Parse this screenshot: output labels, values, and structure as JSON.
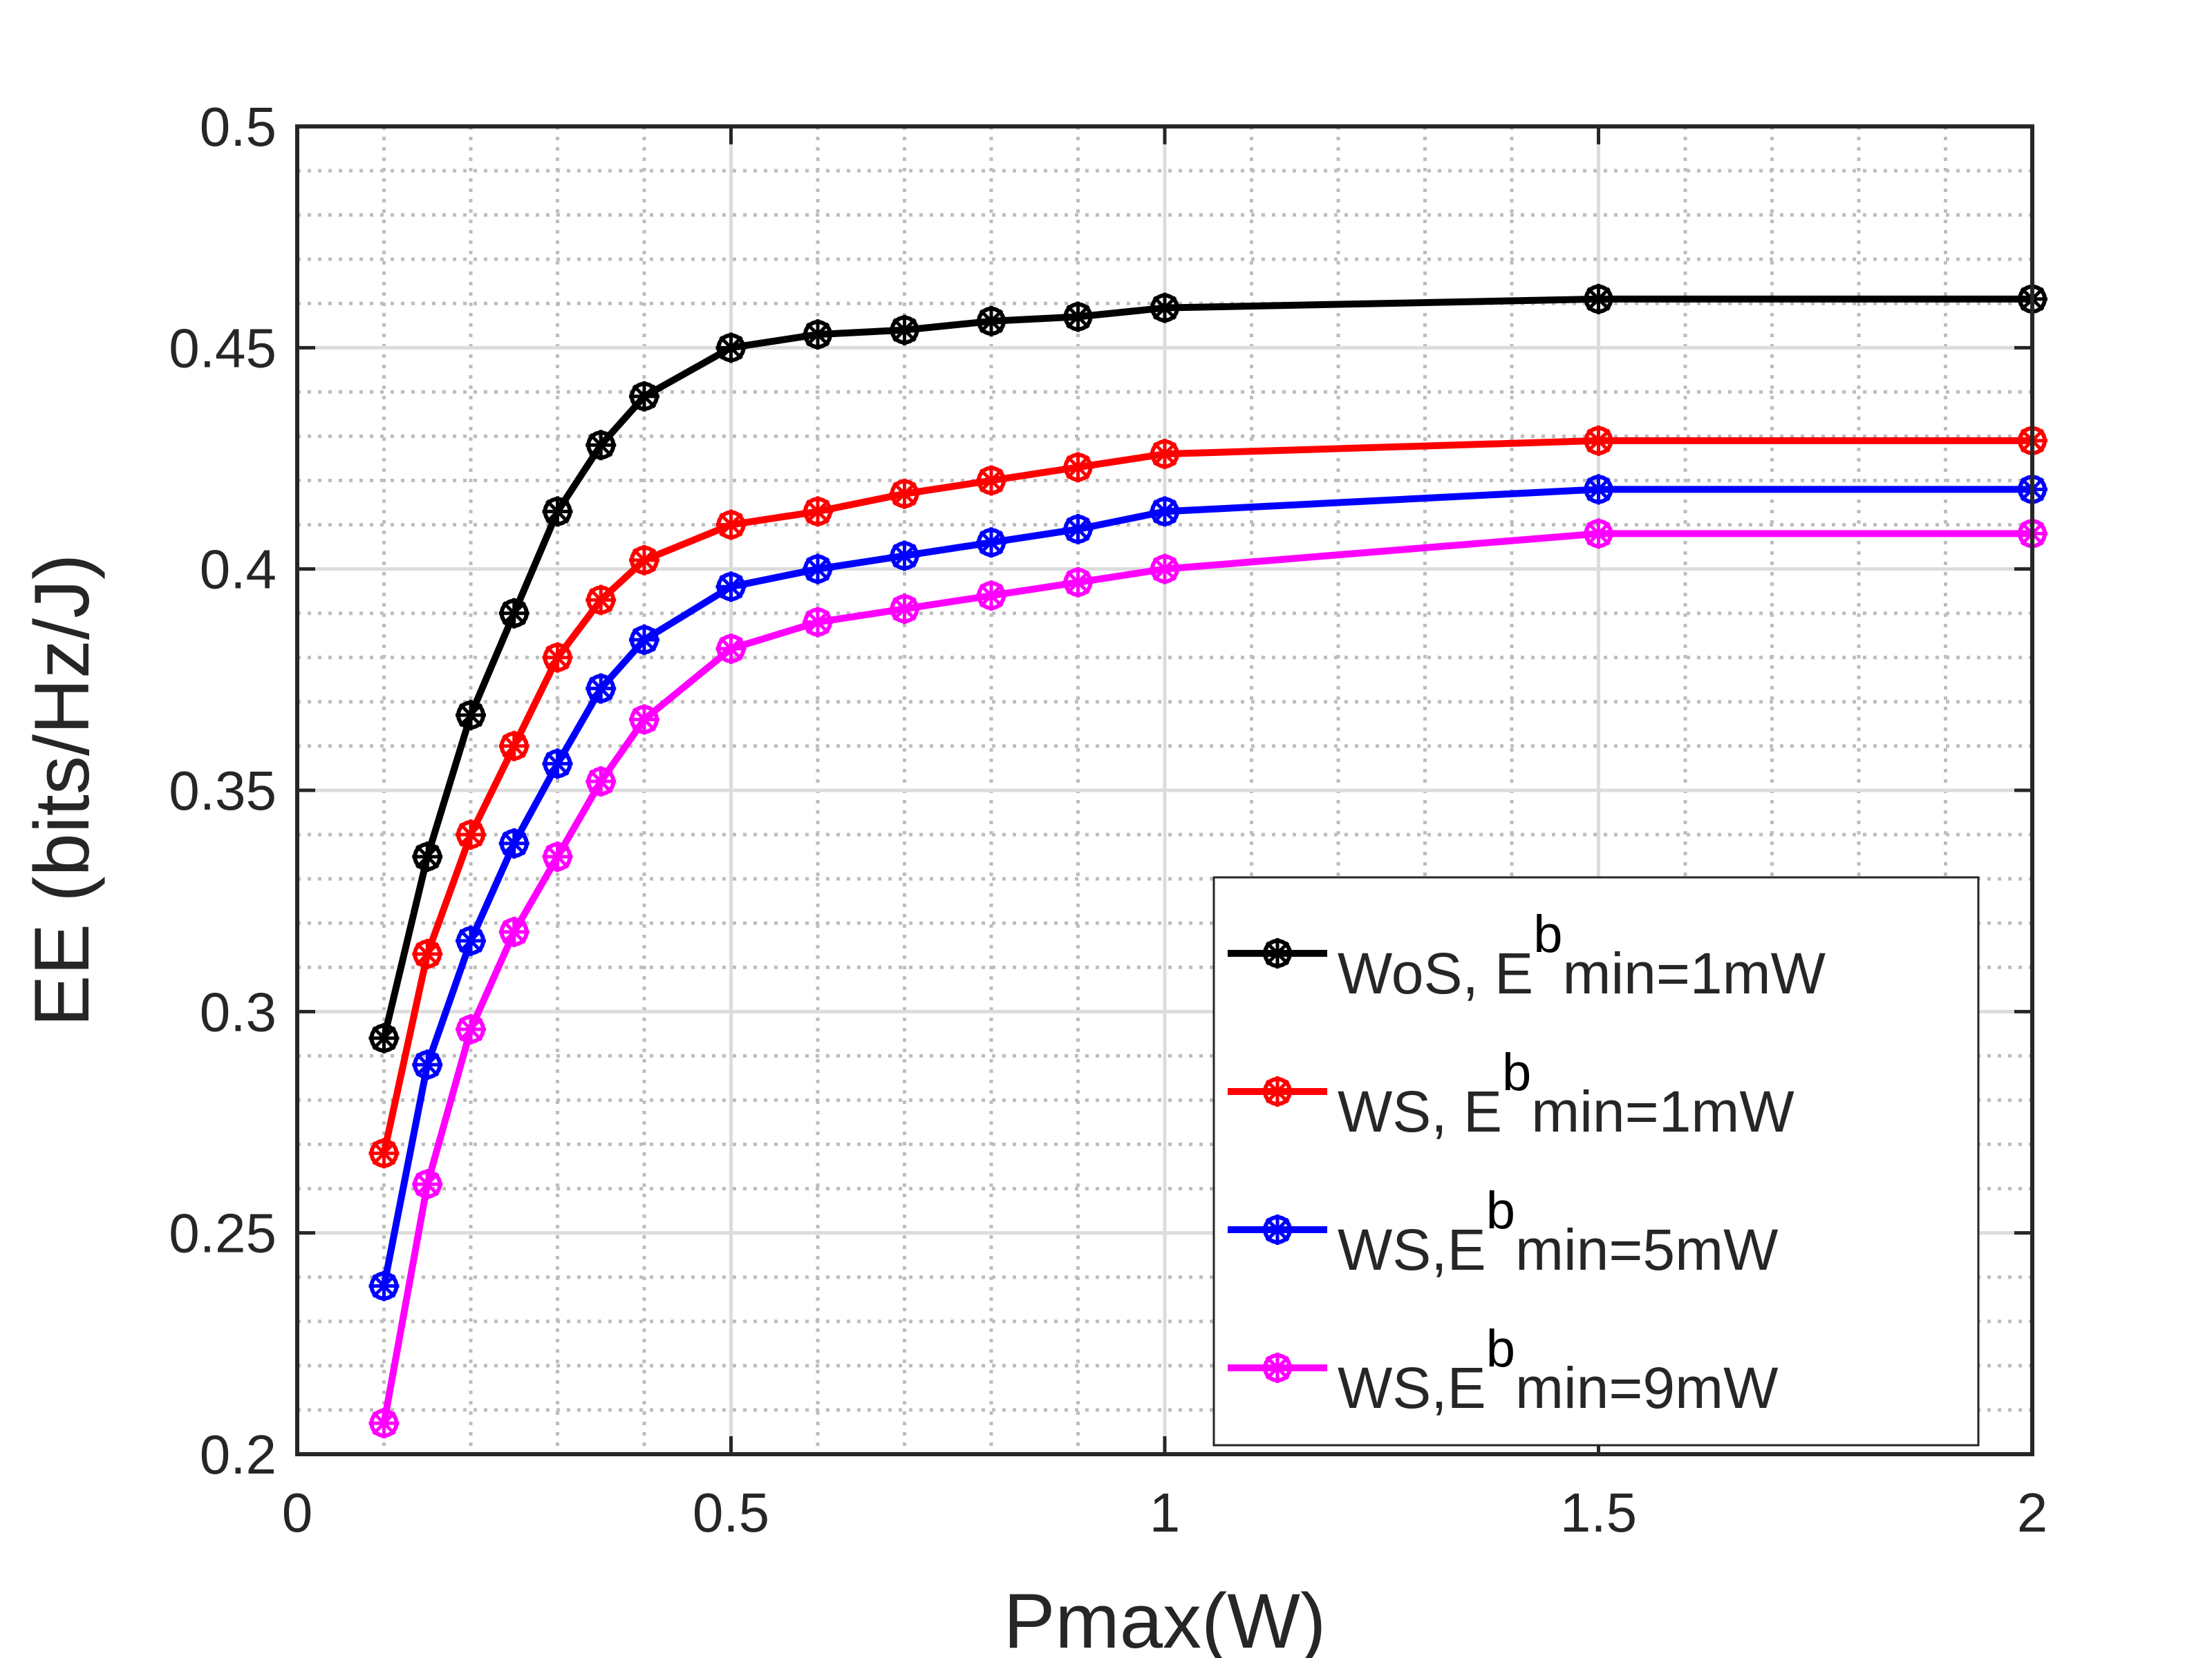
{
  "chart_data": {
    "type": "line",
    "title": "",
    "xlabel": "Pmax(W)",
    "ylabel": "EE (bits/Hz/J)",
    "xlim": [
      0,
      2
    ],
    "ylim": [
      0.2,
      0.5
    ],
    "xticks": [
      0,
      0.5,
      1,
      1.5,
      2
    ],
    "xtick_labels": [
      "0",
      "0.5",
      "1",
      "1.5",
      "2"
    ],
    "yticks": [
      0.2,
      0.25,
      0.3,
      0.35,
      0.4,
      0.45,
      0.5
    ],
    "ytick_labels": [
      "0.2",
      "0.25",
      "0.3",
      "0.35",
      "0.4",
      "0.45",
      "0.5"
    ],
    "grid": true,
    "legend_position": "bottom-right",
    "x": [
      0.1,
      0.15,
      0.2,
      0.25,
      0.3,
      0.35,
      0.4,
      0.5,
      0.6,
      0.7,
      0.8,
      0.9,
      1.0,
      1.5,
      2.0
    ],
    "series": [
      {
        "name": "WoS, E^b_min=1mW",
        "legend_parts": [
          "WoS, E",
          "b",
          "min=1mW"
        ],
        "color": "#000000",
        "values": [
          0.294,
          0.335,
          0.367,
          0.39,
          0.413,
          0.428,
          0.439,
          0.45,
          0.453,
          0.454,
          0.456,
          0.457,
          0.459,
          0.461,
          0.461
        ]
      },
      {
        "name": "WS, E^b_min=1mW",
        "legend_parts": [
          "WS, E",
          "b",
          "min=1mW"
        ],
        "color": "#ff0000",
        "values": [
          0.268,
          0.313,
          0.34,
          0.36,
          0.38,
          0.393,
          0.402,
          0.41,
          0.413,
          0.417,
          0.42,
          0.423,
          0.426,
          0.429,
          0.429
        ]
      },
      {
        "name": "WS,E^b_min=5mW",
        "legend_parts": [
          "WS,E",
          "b",
          "min=5mW"
        ],
        "color": "#0000ff",
        "values": [
          0.238,
          0.288,
          0.316,
          0.338,
          0.356,
          0.373,
          0.384,
          0.396,
          0.4,
          0.403,
          0.406,
          0.409,
          0.413,
          0.418,
          0.418
        ]
      },
      {
        "name": "WS,E^b_min=9mW",
        "legend_parts": [
          "WS,E",
          "b",
          "min=9mW"
        ],
        "color": "#ff00ff",
        "values": [
          0.207,
          0.261,
          0.296,
          0.318,
          0.335,
          0.352,
          0.366,
          0.382,
          0.388,
          0.391,
          0.394,
          0.397,
          0.4,
          0.408,
          0.408
        ]
      }
    ]
  }
}
